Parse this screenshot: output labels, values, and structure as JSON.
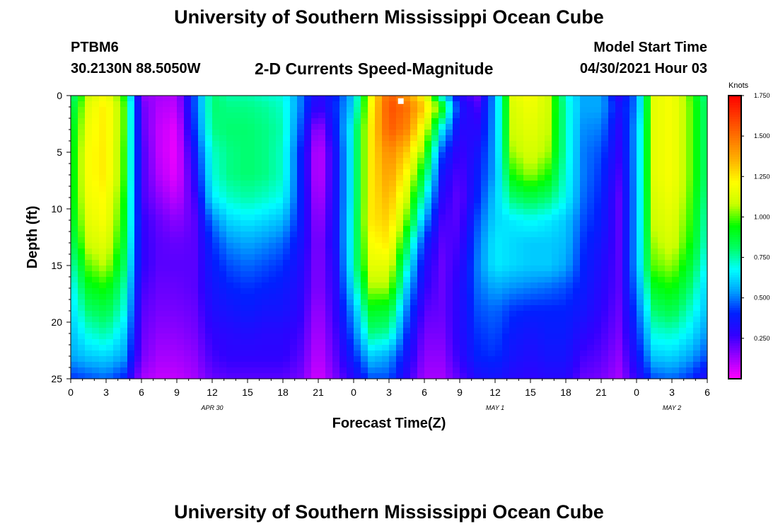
{
  "header": {
    "title": "University of Southern Mississippi Ocean Cube",
    "station": "PTBM6",
    "coords": "30.2130N  88.5050W",
    "subtitle": "2-D Currents Speed-Magnitude",
    "model_start_label": "Model Start Time",
    "model_start_value": "04/30/2021 Hour 03"
  },
  "footer": {
    "title": "University of Southern Mississippi Ocean Cube"
  },
  "chart_data": {
    "type": "heatmap",
    "title": "2-D Currents Speed-Magnitude",
    "xlabel": "Forecast Time(Z)",
    "ylabel": "Depth (ft)",
    "x_ticks": [
      "0",
      "3",
      "6",
      "9",
      "12",
      "15",
      "18",
      "21",
      "0",
      "3",
      "6",
      "9",
      "12",
      "15",
      "18",
      "21",
      "0",
      "3",
      "6"
    ],
    "x_range_hours": [
      0,
      54
    ],
    "date_labels": [
      {
        "text": "APR 30",
        "at_hour": 12
      },
      {
        "text": "MAY 1",
        "at_hour": 36
      },
      {
        "text": "MAY 2",
        "at_hour": 51
      }
    ],
    "y_ticks": [
      "0",
      "5",
      "10",
      "15",
      "20",
      "25"
    ],
    "ylim": [
      0,
      25
    ],
    "y_inverted": true,
    "colorbar": {
      "unit": "Knots",
      "min": 0,
      "max": 1.75,
      "tick_labels": [
        "0.250",
        "0.500",
        "0.750",
        "1.000",
        "1.250",
        "1.500",
        "1.750"
      ],
      "colors": [
        "#ff00ff",
        "#9a00ff",
        "#3200ff",
        "#0020ff",
        "#00a0ff",
        "#00ffff",
        "#00ff64",
        "#00ff00",
        "#c8ff00",
        "#ffff00",
        "#ffb400",
        "#ff7800",
        "#ff3c00",
        "#ff0000"
      ]
    },
    "grid": false,
    "marker": {
      "hour": 28,
      "depth": 0.3
    },
    "hours": [
      0,
      1.5,
      3,
      4.5,
      6,
      7.5,
      9,
      10.5,
      12,
      13.5,
      15,
      16.5,
      18,
      19.5,
      21,
      22.5,
      24,
      25.5,
      27,
      28.5,
      30,
      31.5,
      33,
      34.5,
      36,
      37.5,
      39,
      40.5,
      42,
      43.5,
      45,
      46.5,
      48,
      49.5,
      51,
      52.5,
      54
    ],
    "depths": [
      0,
      1,
      3,
      5,
      7,
      9,
      11,
      13,
      15,
      17,
      19,
      21,
      23,
      25
    ],
    "values": [
      [
        0.75,
        1.1,
        1.2,
        0.95,
        0.15,
        0.12,
        0.1,
        0.45,
        0.8,
        0.75,
        0.75,
        0.72,
        0.7,
        0.5,
        0.28,
        0.4,
        0.6,
        1.2,
        1.55,
        1.4,
        1.2,
        0.65,
        0.3,
        0.2,
        0.55,
        1.15,
        1.2,
        1.1,
        0.7,
        0.55,
        0.55,
        0.3,
        0.5,
        1.15,
        1.2,
        1.0,
        0.75
      ],
      [
        0.8,
        1.15,
        1.25,
        1.0,
        0.2,
        0.1,
        0.08,
        0.45,
        0.8,
        0.78,
        0.78,
        0.76,
        0.72,
        0.5,
        0.25,
        0.42,
        0.62,
        1.22,
        1.58,
        1.5,
        1.3,
        0.95,
        0.35,
        0.25,
        0.55,
        1.12,
        1.18,
        1.1,
        0.72,
        0.55,
        0.55,
        0.35,
        0.5,
        1.15,
        1.2,
        1.02,
        0.78
      ],
      [
        0.85,
        1.18,
        1.25,
        1.0,
        0.22,
        0.08,
        0.03,
        0.42,
        0.78,
        0.8,
        0.8,
        0.78,
        0.74,
        0.45,
        0.1,
        0.4,
        0.7,
        1.25,
        1.55,
        1.45,
        1.15,
        0.65,
        0.3,
        0.3,
        0.55,
        1.1,
        1.15,
        1.08,
        0.72,
        0.52,
        0.5,
        0.3,
        0.55,
        1.15,
        1.2,
        1.02,
        0.78
      ],
      [
        0.88,
        1.2,
        1.25,
        0.98,
        0.25,
        0.08,
        0.02,
        0.35,
        0.72,
        0.78,
        0.8,
        0.78,
        0.72,
        0.4,
        0.05,
        0.35,
        0.7,
        1.25,
        1.45,
        1.3,
        1.0,
        0.45,
        0.25,
        0.35,
        0.55,
        1.05,
        1.12,
        1.05,
        0.72,
        0.5,
        0.45,
        0.28,
        0.55,
        1.15,
        1.2,
        1.02,
        0.78
      ],
      [
        0.88,
        1.2,
        1.25,
        0.98,
        0.25,
        0.1,
        0.03,
        0.3,
        0.7,
        0.78,
        0.8,
        0.78,
        0.72,
        0.4,
        0.05,
        0.35,
        0.7,
        1.25,
        1.4,
        1.2,
        0.85,
        0.35,
        0.22,
        0.38,
        0.55,
        0.95,
        1.05,
        0.95,
        0.7,
        0.5,
        0.42,
        0.25,
        0.55,
        1.15,
        1.2,
        1.02,
        0.78
      ],
      [
        0.88,
        1.18,
        1.22,
        0.95,
        0.25,
        0.15,
        0.08,
        0.25,
        0.65,
        0.72,
        0.75,
        0.72,
        0.68,
        0.4,
        0.08,
        0.35,
        0.7,
        1.25,
        1.35,
        1.1,
        0.7,
        0.3,
        0.2,
        0.4,
        0.6,
        0.8,
        0.85,
        0.8,
        0.68,
        0.48,
        0.4,
        0.22,
        0.55,
        1.12,
        1.18,
        1.0,
        0.75
      ],
      [
        0.85,
        1.15,
        1.2,
        0.92,
        0.28,
        0.2,
        0.15,
        0.22,
        0.5,
        0.62,
        0.65,
        0.62,
        0.58,
        0.38,
        0.12,
        0.35,
        0.72,
        1.25,
        1.3,
        1.0,
        0.55,
        0.25,
        0.22,
        0.45,
        0.62,
        0.65,
        0.68,
        0.65,
        0.6,
        0.45,
        0.38,
        0.22,
        0.55,
        1.1,
        1.15,
        0.98,
        0.72
      ],
      [
        0.8,
        1.1,
        1.15,
        0.88,
        0.28,
        0.22,
        0.2,
        0.22,
        0.42,
        0.52,
        0.55,
        0.52,
        0.48,
        0.35,
        0.15,
        0.35,
        0.72,
        1.2,
        1.25,
        0.85,
        0.4,
        0.22,
        0.25,
        0.48,
        0.65,
        0.62,
        0.6,
        0.6,
        0.58,
        0.42,
        0.35,
        0.22,
        0.55,
        1.05,
        1.12,
        0.95,
        0.7
      ],
      [
        0.72,
        1.0,
        1.08,
        0.82,
        0.28,
        0.22,
        0.22,
        0.22,
        0.38,
        0.45,
        0.48,
        0.45,
        0.42,
        0.32,
        0.15,
        0.32,
        0.72,
        1.15,
        1.15,
        0.72,
        0.32,
        0.2,
        0.28,
        0.5,
        0.65,
        0.62,
        0.6,
        0.6,
        0.55,
        0.4,
        0.32,
        0.22,
        0.55,
        1.0,
        1.05,
        0.88,
        0.65
      ],
      [
        0.65,
        0.9,
        0.95,
        0.75,
        0.25,
        0.2,
        0.2,
        0.22,
        0.35,
        0.4,
        0.42,
        0.4,
        0.38,
        0.3,
        0.15,
        0.3,
        0.65,
        1.05,
        1.05,
        0.6,
        0.28,
        0.2,
        0.3,
        0.48,
        0.55,
        0.52,
        0.5,
        0.48,
        0.45,
        0.38,
        0.3,
        0.22,
        0.5,
        0.9,
        0.95,
        0.8,
        0.6
      ],
      [
        0.62,
        0.8,
        0.85,
        0.7,
        0.22,
        0.18,
        0.18,
        0.2,
        0.32,
        0.35,
        0.38,
        0.35,
        0.35,
        0.28,
        0.12,
        0.28,
        0.55,
        0.9,
        0.88,
        0.5,
        0.22,
        0.2,
        0.3,
        0.45,
        0.48,
        0.42,
        0.4,
        0.4,
        0.4,
        0.35,
        0.28,
        0.2,
        0.45,
        0.8,
        0.85,
        0.72,
        0.58
      ],
      [
        0.58,
        0.7,
        0.75,
        0.62,
        0.2,
        0.15,
        0.15,
        0.18,
        0.28,
        0.3,
        0.32,
        0.3,
        0.3,
        0.25,
        0.1,
        0.25,
        0.48,
        0.78,
        0.75,
        0.42,
        0.18,
        0.18,
        0.3,
        0.42,
        0.45,
        0.38,
        0.35,
        0.38,
        0.38,
        0.3,
        0.25,
        0.18,
        0.4,
        0.7,
        0.72,
        0.65,
        0.52
      ],
      [
        0.55,
        0.6,
        0.62,
        0.55,
        0.18,
        0.12,
        0.12,
        0.15,
        0.25,
        0.28,
        0.28,
        0.28,
        0.28,
        0.22,
        0.08,
        0.22,
        0.4,
        0.6,
        0.55,
        0.35,
        0.15,
        0.15,
        0.28,
        0.4,
        0.42,
        0.35,
        0.32,
        0.35,
        0.35,
        0.25,
        0.22,
        0.15,
        0.35,
        0.6,
        0.62,
        0.55,
        0.45
      ],
      [
        0.42,
        0.45,
        0.48,
        0.4,
        0.12,
        0.08,
        0.08,
        0.12,
        0.2,
        0.22,
        0.22,
        0.22,
        0.22,
        0.18,
        0.05,
        0.18,
        0.3,
        0.45,
        0.45,
        0.28,
        0.12,
        0.12,
        0.22,
        0.32,
        0.35,
        0.3,
        0.28,
        0.3,
        0.3,
        0.2,
        0.18,
        0.12,
        0.28,
        0.45,
        0.48,
        0.42,
        0.3
      ]
    ]
  }
}
